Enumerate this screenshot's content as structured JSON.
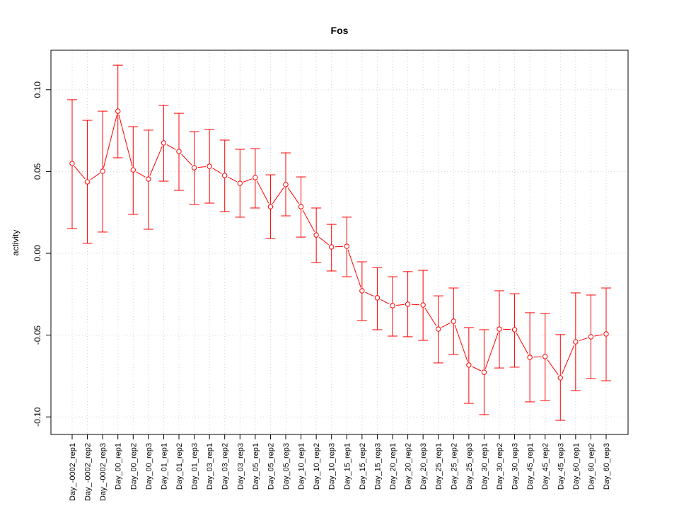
{
  "chart_data": {
    "type": "line",
    "title": "Fos",
    "xlabel": "",
    "ylabel": "activity",
    "ylim": [
      -0.11,
      0.122
    ],
    "yticks": [
      -0.1,
      -0.05,
      0.0,
      0.05,
      0.1
    ],
    "ytick_labels": [
      "-0.10",
      "-0.05",
      "0.00",
      "0.05",
      "0.10"
    ],
    "grid": true,
    "color": "#ff0000",
    "categories": [
      "Day_-0002_rep1",
      "Day_-0002_rep2",
      "Day_-0002_rep3",
      "Day_00_rep1",
      "Day_00_rep2",
      "Day_00_rep3",
      "Day_01_rep1",
      "Day_01_rep2",
      "Day_01_rep3",
      "Day_03_rep1",
      "Day_03_rep2",
      "Day_03_rep3",
      "Day_05_rep1",
      "Day_05_rep2",
      "Day_05_rep3",
      "Day_10_rep1",
      "Day_10_rep2",
      "Day_10_rep3",
      "Day_15_rep1",
      "Day_15_rep2",
      "Day_15_rep3",
      "Day_20_rep1",
      "Day_20_rep2",
      "Day_20_rep3",
      "Day_25_rep1",
      "Day_25_rep2",
      "Day_25_rep3",
      "Day_30_rep1",
      "Day_30_rep2",
      "Day_30_rep3",
      "Day_45_rep1",
      "Day_45_rep2",
      "Day_45_rep3",
      "Day_60_rep1",
      "Day_60_rep2",
      "Day_60_rep3"
    ],
    "values": [
      0.0549,
      0.0437,
      0.0502,
      0.0869,
      0.051,
      0.0454,
      0.0675,
      0.0623,
      0.0523,
      0.0532,
      0.0476,
      0.0428,
      0.0463,
      0.0285,
      0.042,
      0.0285,
      0.0112,
      0.0039,
      0.0043,
      -0.0229,
      -0.0272,
      -0.032,
      -0.0311,
      -0.0316,
      -0.0463,
      -0.0415,
      -0.0683,
      -0.0727,
      -0.0463,
      -0.0467,
      -0.0636,
      -0.0631,
      -0.0761,
      -0.0541,
      -0.051,
      -0.0493
    ],
    "upper": [
      0.0939,
      0.0813,
      0.0869,
      0.115,
      0.0774,
      0.0753,
      0.0904,
      0.0856,
      0.0744,
      0.0757,
      0.0692,
      0.0636,
      0.064,
      0.048,
      0.0614,
      0.0467,
      0.0277,
      0.0177,
      0.0221,
      -0.0052,
      -0.0087,
      -0.0143,
      -0.0112,
      -0.0104,
      -0.026,
      -0.0212,
      -0.0454,
      -0.0467,
      -0.0229,
      -0.0247,
      -0.0363,
      -0.0368,
      -0.0497,
      -0.0242,
      -0.0255,
      -0.0212
    ],
    "lower": [
      0.0151,
      0.0061,
      0.013,
      0.0584,
      0.0238,
      0.0147,
      0.0441,
      0.0385,
      0.0298,
      0.0307,
      0.0255,
      0.0221,
      0.0277,
      0.0091,
      0.0229,
      0.0099,
      -0.0056,
      -0.0108,
      -0.0143,
      -0.0411,
      -0.0467,
      -0.0506,
      -0.051,
      -0.0532,
      -0.067,
      -0.0618,
      -0.0917,
      -0.0986,
      -0.0701,
      -0.0696,
      -0.0908,
      -0.09,
      -0.1021,
      -0.0839,
      -0.0766,
      -0.0779
    ]
  }
}
